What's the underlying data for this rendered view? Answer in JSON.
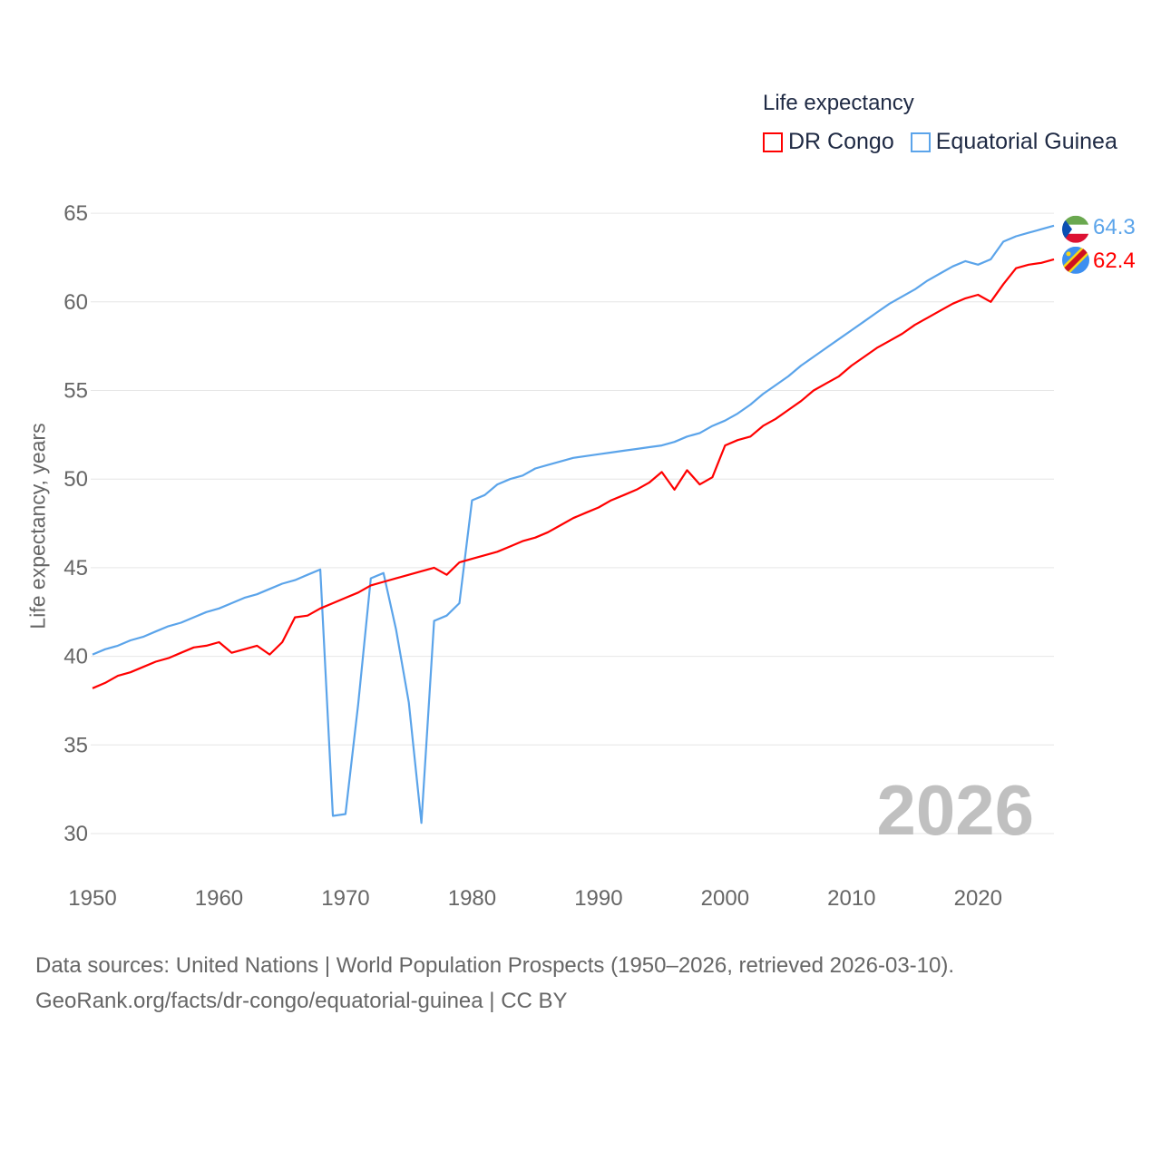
{
  "chart_data": {
    "type": "line",
    "title": "Life expectancy",
    "xlabel": "",
    "ylabel": "Life expectancy, years",
    "xlim": [
      1950,
      2026
    ],
    "ylim": [
      28,
      66
    ],
    "yticks": [
      30,
      35,
      40,
      45,
      50,
      55,
      60,
      65
    ],
    "xticks": [
      1950,
      1960,
      1970,
      1980,
      1990,
      2000,
      2010,
      2020
    ],
    "grid": true,
    "legend_position": "top-right",
    "year_watermark": "2026",
    "x": [
      1950,
      1951,
      1952,
      1953,
      1954,
      1955,
      1956,
      1957,
      1958,
      1959,
      1960,
      1961,
      1962,
      1963,
      1964,
      1965,
      1966,
      1967,
      1968,
      1969,
      1970,
      1971,
      1972,
      1973,
      1974,
      1975,
      1976,
      1977,
      1978,
      1979,
      1980,
      1981,
      1982,
      1983,
      1984,
      1985,
      1986,
      1987,
      1988,
      1989,
      1990,
      1991,
      1992,
      1993,
      1994,
      1995,
      1996,
      1997,
      1998,
      1999,
      2000,
      2001,
      2002,
      2003,
      2004,
      2005,
      2006,
      2007,
      2008,
      2009,
      2010,
      2011,
      2012,
      2013,
      2014,
      2015,
      2016,
      2017,
      2018,
      2019,
      2020,
      2021,
      2022,
      2023,
      2024,
      2025,
      2026
    ],
    "series": [
      {
        "name": "DR Congo",
        "color": "#ff0000",
        "end_label": "62.4",
        "values": [
          38.2,
          38.5,
          38.9,
          39.1,
          39.4,
          39.7,
          39.9,
          40.2,
          40.5,
          40.6,
          40.8,
          40.2,
          40.4,
          40.6,
          40.1,
          40.8,
          42.2,
          42.3,
          42.7,
          43.0,
          43.3,
          43.6,
          44.0,
          44.2,
          44.4,
          44.6,
          44.8,
          45.0,
          44.6,
          45.3,
          45.5,
          45.7,
          45.9,
          46.2,
          46.5,
          46.7,
          47.0,
          47.4,
          47.8,
          48.1,
          48.4,
          48.8,
          49.1,
          49.4,
          49.8,
          50.4,
          49.4,
          50.5,
          49.7,
          50.1,
          51.9,
          52.2,
          52.4,
          53.0,
          53.4,
          53.9,
          54.4,
          55.0,
          55.4,
          55.8,
          56.4,
          56.9,
          57.4,
          57.8,
          58.2,
          58.7,
          59.1,
          59.5,
          59.9,
          60.2,
          60.4,
          60.0,
          61.0,
          61.9,
          62.1,
          62.2,
          62.4
        ]
      },
      {
        "name": "Equatorial Guinea",
        "color": "#5ba4ea",
        "end_label": "64.3",
        "values": [
          40.1,
          40.4,
          40.6,
          40.9,
          41.1,
          41.4,
          41.7,
          41.9,
          42.2,
          42.5,
          42.7,
          43.0,
          43.3,
          43.5,
          43.8,
          44.1,
          44.3,
          44.6,
          44.9,
          31.0,
          31.1,
          37.3,
          44.4,
          44.7,
          41.5,
          37.4,
          30.6,
          42.0,
          42.3,
          43.0,
          48.8,
          49.1,
          49.7,
          50.0,
          50.2,
          50.6,
          50.8,
          51.0,
          51.2,
          51.3,
          51.4,
          51.5,
          51.6,
          51.7,
          51.8,
          51.9,
          52.1,
          52.4,
          52.6,
          53.0,
          53.3,
          53.7,
          54.2,
          54.8,
          55.3,
          55.8,
          56.4,
          56.9,
          57.4,
          57.9,
          58.4,
          58.9,
          59.4,
          59.9,
          60.3,
          60.7,
          61.2,
          61.6,
          62.0,
          62.3,
          62.1,
          62.4,
          63.4,
          63.7,
          63.9,
          64.1,
          64.3
        ]
      }
    ]
  },
  "source": {
    "line1": "Data sources: United Nations | World Population Prospects (1950–2026, retrieved 2026-03-10).",
    "line2": "GeoRank.org/facts/dr-congo/equatorial-guinea | CC BY"
  }
}
